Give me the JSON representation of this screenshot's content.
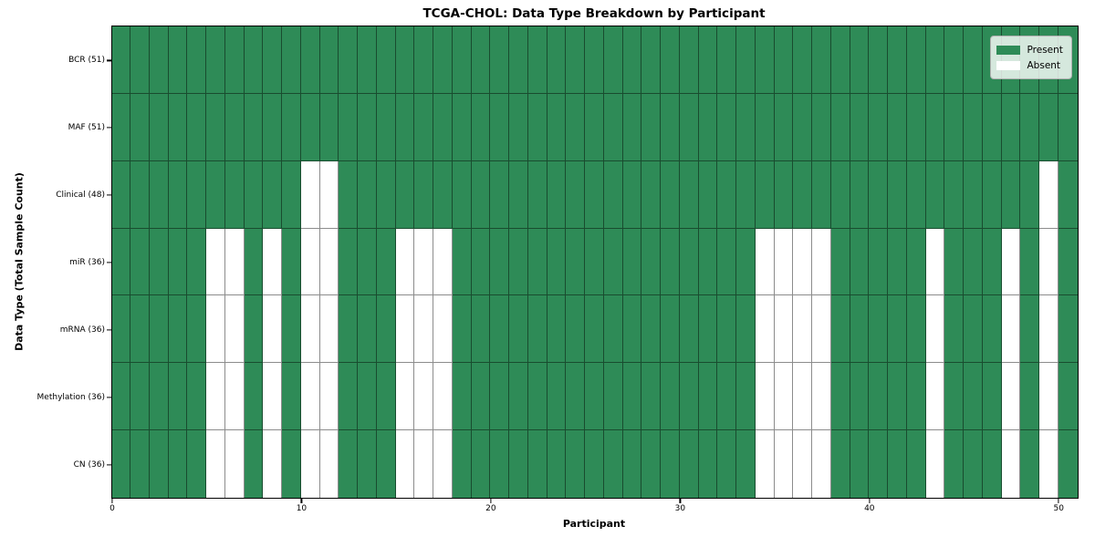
{
  "figure": {
    "title": "TCGA-CHOL: Data Type Breakdown by Participant",
    "xlabel": "Participant",
    "ylabel": "Data Type (Total Sample Count)"
  },
  "legend": {
    "position": "upper right",
    "items": [
      {
        "label": "Present",
        "color": "#2e8b57"
      },
      {
        "label": "Absent",
        "color": "#ffffff"
      }
    ]
  },
  "chart_data": {
    "type": "heatmap",
    "title": "TCGA-CHOL: Data Type Breakdown by Participant",
    "xlabel": "Participant",
    "ylabel": "Data Type (Total Sample Count)",
    "x_range": [
      0,
      51
    ],
    "n_participants": 51,
    "x_ticks": [
      0,
      10,
      20,
      30,
      40,
      50
    ],
    "grid": true,
    "colors": {
      "present": "#2e8b57",
      "absent": "#ffffff",
      "cell_edge": "rgba(0,0,0,0.45)"
    },
    "rows": [
      {
        "label": "BCR (51)",
        "data_type": "BCR",
        "total_samples": 51,
        "absent_participants": []
      },
      {
        "label": "MAF (51)",
        "data_type": "MAF",
        "total_samples": 51,
        "absent_participants": []
      },
      {
        "label": "Clinical (48)",
        "data_type": "Clinical",
        "total_samples": 48,
        "absent_participants": [
          10,
          11,
          49
        ]
      },
      {
        "label": "miR (36)",
        "data_type": "miR",
        "total_samples": 36,
        "absent_participants": [
          5,
          6,
          8,
          10,
          11,
          15,
          16,
          17,
          34,
          35,
          36,
          37,
          43,
          47,
          49
        ]
      },
      {
        "label": "mRNA (36)",
        "data_type": "mRNA",
        "total_samples": 36,
        "absent_participants": [
          5,
          6,
          8,
          10,
          11,
          15,
          16,
          17,
          34,
          35,
          36,
          37,
          43,
          47,
          49
        ]
      },
      {
        "label": "Methylation (36)",
        "data_type": "Methylation",
        "total_samples": 36,
        "absent_participants": [
          5,
          6,
          8,
          10,
          11,
          15,
          16,
          17,
          34,
          35,
          36,
          37,
          43,
          47,
          49
        ]
      },
      {
        "label": "CN (36)",
        "data_type": "CN",
        "total_samples": 36,
        "absent_participants": [
          5,
          6,
          8,
          10,
          11,
          15,
          16,
          17,
          34,
          35,
          36,
          37,
          43,
          47,
          49
        ]
      }
    ]
  }
}
